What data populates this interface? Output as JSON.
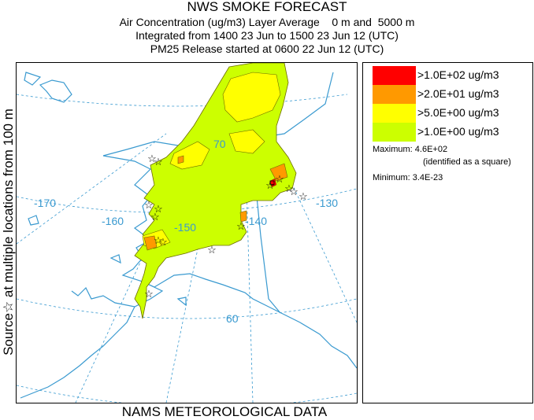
{
  "title": {
    "main": "NWS SMOKE FORECAST",
    "line2": "Air Concentration (ug/m3) Layer Average    0 m and  5000 m",
    "line3": "Integrated from 1400 23 Jun to 1500 23 Jun 12 (UTC)",
    "line4": "PM25 Release started at 0600 22 Jun 12 (UTC)"
  },
  "side_label": "Source☆ at multiple locations   from   100 m",
  "footer": "NAMS METEOROLOGICAL DATA",
  "map": {
    "longitude_labels": [
      "-170",
      "-160",
      "-150",
      "-140",
      "-130"
    ],
    "latitude_labels": [
      "70",
      "60"
    ],
    "colors": {
      "coast": "#3a9ad0",
      "grid": "#3a9ad0",
      "level_100": "#ff0000",
      "level_20": "#ff9900",
      "level_5": "#ffff00",
      "level_1": "#ccff00",
      "plume_outline": "#6b6b00"
    }
  },
  "legend": {
    "items": [
      {
        "label": ">1.0E+02 ug/m3",
        "color": "#ff0000"
      },
      {
        "label": ">2.0E+01 ug/m3",
        "color": "#ff9900"
      },
      {
        "label": ">5.0E+00 ug/m3",
        "color": "#ffff00"
      },
      {
        "label": ">1.0E+00 ug/m3",
        "color": "#ccff00"
      }
    ],
    "maximum": "Maximum: 4.6E+02",
    "maximum_note": "(identified as a square)",
    "minimum": "Minimum: 3.4E-23"
  }
}
